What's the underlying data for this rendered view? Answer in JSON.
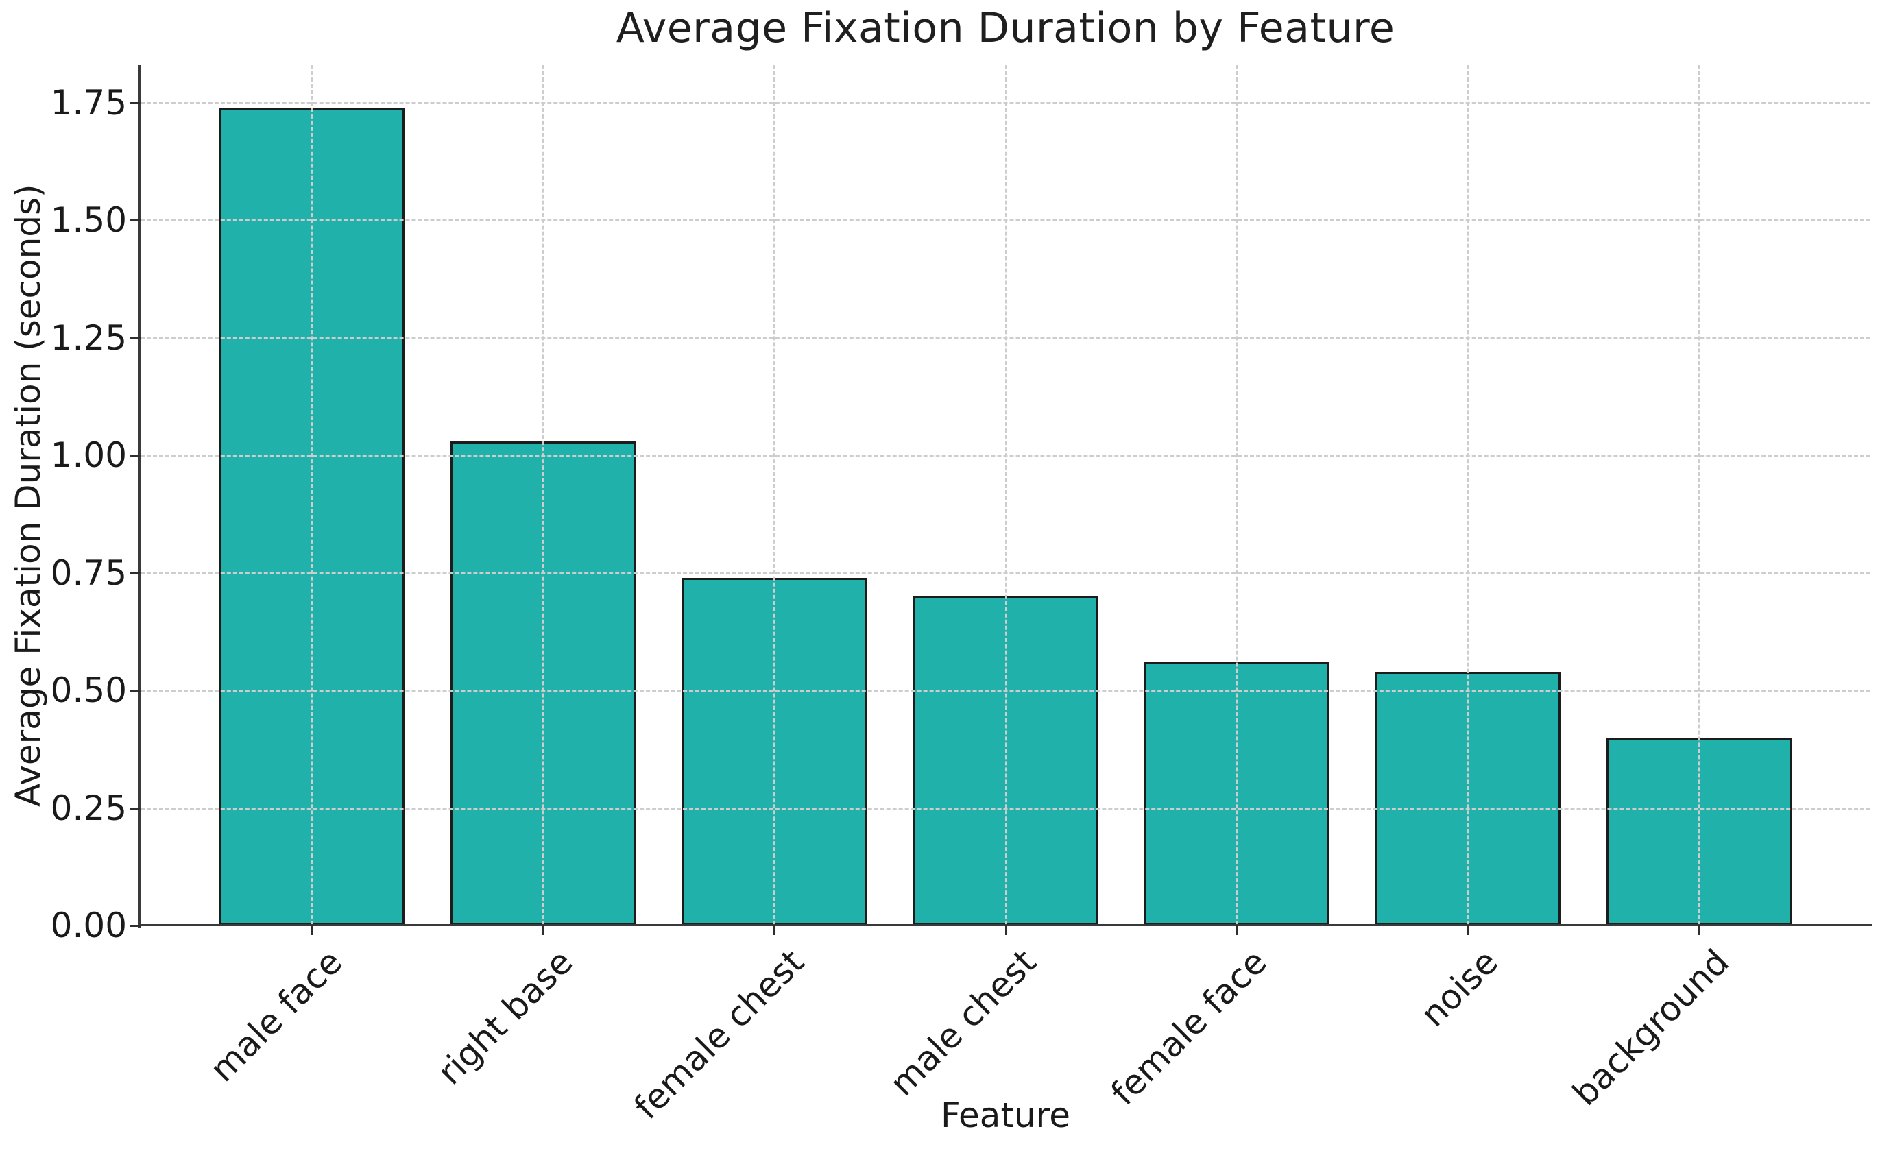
{
  "chart_data": {
    "type": "bar",
    "title": "Average Fixation Duration by Feature",
    "xlabel": "Feature",
    "ylabel": "Average Fixation Duration (seconds)",
    "categories": [
      "male face",
      "right base",
      "female chest",
      "male chest",
      "female face",
      "noise",
      "background"
    ],
    "values": [
      1.74,
      1.03,
      0.74,
      0.7,
      0.56,
      0.54,
      0.4
    ],
    "ylim": [
      0,
      1.83
    ],
    "yticks": [
      0.0,
      0.25,
      0.5,
      0.75,
      1.0,
      1.25,
      1.5,
      1.75
    ],
    "ytick_labels": [
      "0.00",
      "0.25",
      "0.50",
      "0.75",
      "1.00",
      "1.25",
      "1.50",
      "1.75"
    ],
    "grid": true,
    "grid_style": "dashed",
    "legend": "none",
    "bar_color": "#20B2AA",
    "bar_edge_color": "#1c1c1c",
    "grid_color": "#cdcdcd",
    "spine_color": "#3a3a3a",
    "text_color": "#1a1a1a",
    "background_color": "#ffffff"
  }
}
